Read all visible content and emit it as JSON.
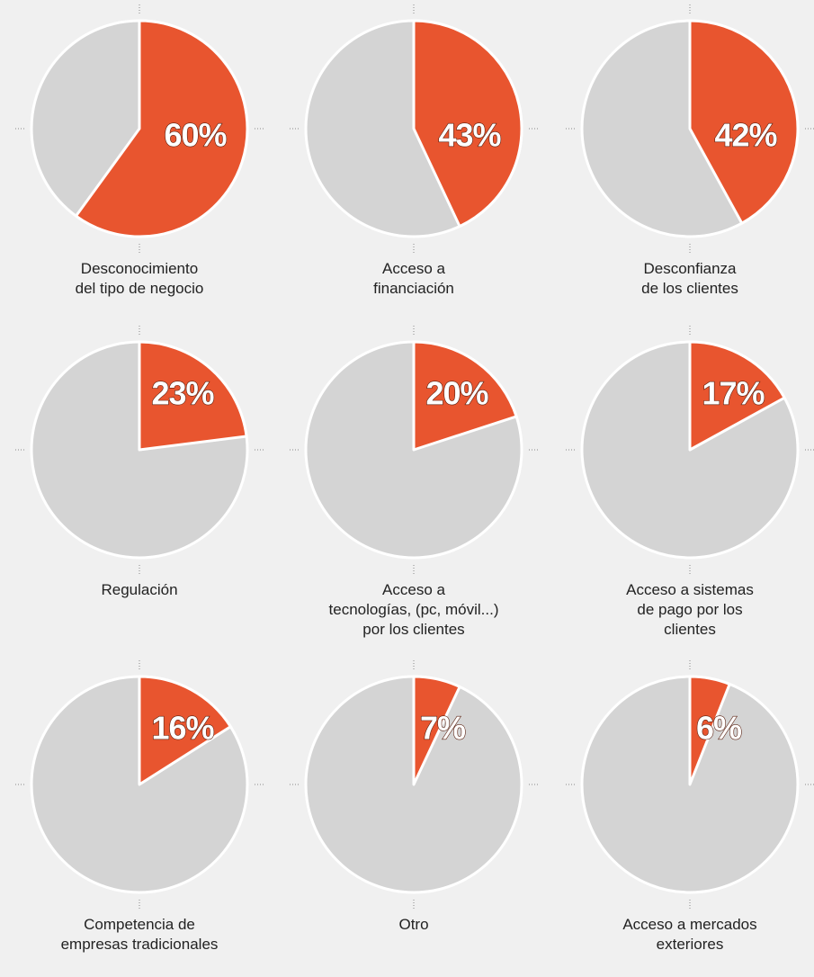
{
  "chart_data": [
    {
      "type": "pie",
      "categories": [
        "Desconocimiento\ndel tipo de negocio"
      ],
      "values": [
        60
      ],
      "value_labels": [
        "60%"
      ],
      "colors": [
        "#e8552f"
      ]
    },
    {
      "type": "pie",
      "categories": [
        "Acceso a\nfinanciación"
      ],
      "values": [
        43
      ],
      "value_labels": [
        "43%"
      ],
      "colors": [
        "#e8552f"
      ]
    },
    {
      "type": "pie",
      "categories": [
        "Desconfianza\nde los clientes"
      ],
      "values": [
        42
      ],
      "value_labels": [
        "42%"
      ],
      "colors": [
        "#e8552f"
      ]
    },
    {
      "type": "pie",
      "categories": [
        "Regulación"
      ],
      "values": [
        23
      ],
      "value_labels": [
        "23%"
      ],
      "colors": [
        "#e8552f"
      ]
    },
    {
      "type": "pie",
      "categories": [
        "Acceso a\ntecnologías, (pc, móvil...)\npor los clientes"
      ],
      "values": [
        20
      ],
      "value_labels": [
        "20%"
      ],
      "colors": [
        "#e8552f"
      ]
    },
    {
      "type": "pie",
      "categories": [
        "Acceso a sistemas\nde pago por los\nclientes"
      ],
      "values": [
        17
      ],
      "value_labels": [
        "17%"
      ],
      "colors": [
        "#e8552f"
      ]
    },
    {
      "type": "pie",
      "categories": [
        "Competencia de\nempresas tradicionales"
      ],
      "values": [
        16
      ],
      "value_labels": [
        "16%"
      ],
      "colors": [
        "#e8552f"
      ]
    },
    {
      "type": "pie",
      "categories": [
        "Otro"
      ],
      "values": [
        7
      ],
      "value_labels": [
        "7%"
      ],
      "colors": [
        "#e8552f"
      ]
    },
    {
      "type": "pie",
      "categories": [
        "Acceso a mercados\nexteriores"
      ],
      "values": [
        6
      ],
      "value_labels": [
        "6%"
      ],
      "colors": [
        "#e8552f"
      ]
    }
  ]
}
